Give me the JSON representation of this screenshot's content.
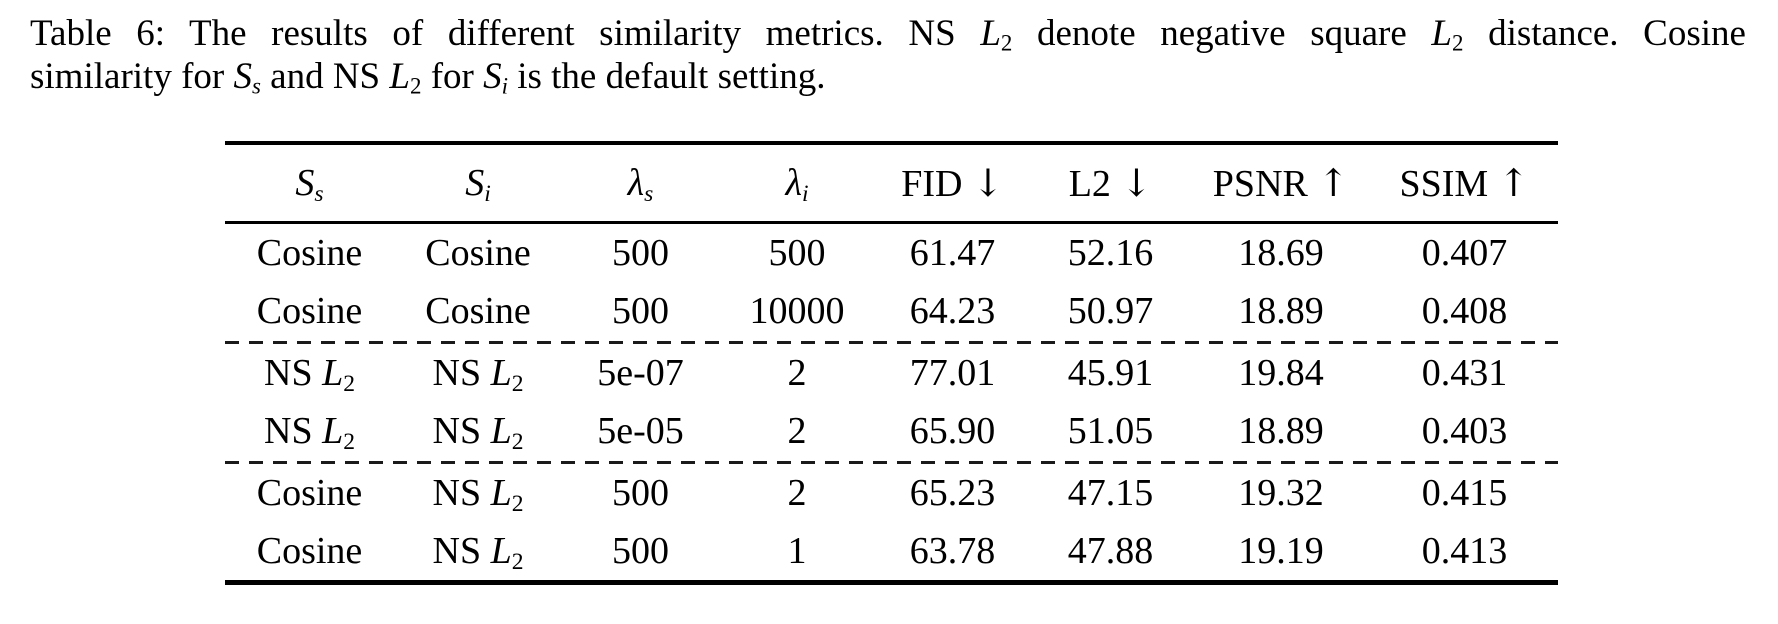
{
  "caption": {
    "line1": [
      {
        "t": "Table 6: The results of different similarity metrics. NS "
      },
      {
        "t": "L",
        "s": "i"
      },
      {
        "t": "2",
        "s": "sub"
      },
      {
        "t": " denote negative square "
      },
      {
        "t": "L",
        "s": "i"
      },
      {
        "t": "2",
        "s": "sub"
      },
      {
        "t": " distance. Cosine"
      }
    ],
    "line2": [
      {
        "t": "similarity for "
      },
      {
        "t": "S",
        "s": "cal"
      },
      {
        "t": "s",
        "s": "subi"
      },
      {
        "t": " and NS "
      },
      {
        "t": "L",
        "s": "i"
      },
      {
        "t": "2",
        "s": "sub"
      },
      {
        "t": " for "
      },
      {
        "t": "S",
        "s": "cal"
      },
      {
        "t": "i",
        "s": "subi"
      },
      {
        "t": " is the default setting."
      }
    ]
  },
  "table": {
    "columns": [
      {
        "id": "similarity-s",
        "segments": [
          {
            "t": "S",
            "s": "cal"
          },
          {
            "t": "s",
            "s": "subi"
          }
        ]
      },
      {
        "id": "similarity-i",
        "segments": [
          {
            "t": "S",
            "s": "cal"
          },
          {
            "t": "i",
            "s": "subi"
          }
        ]
      },
      {
        "id": "lambda-s",
        "segments": [
          {
            "t": "λ",
            "s": "i"
          },
          {
            "t": "s",
            "s": "subi"
          }
        ]
      },
      {
        "id": "lambda-i",
        "segments": [
          {
            "t": "λ",
            "s": "i"
          },
          {
            "t": "i",
            "s": "subi"
          }
        ]
      },
      {
        "id": "fid",
        "segments": [
          {
            "t": "FID "
          },
          {
            "t": "↓",
            "s": "arrow"
          }
        ]
      },
      {
        "id": "l2",
        "segments": [
          {
            "t": "L2 "
          },
          {
            "t": "↓",
            "s": "arrow"
          }
        ]
      },
      {
        "id": "psnr",
        "segments": [
          {
            "t": "PSNR "
          },
          {
            "t": "↑",
            "s": "arrow"
          }
        ]
      },
      {
        "id": "ssim",
        "segments": [
          {
            "t": "SSIM "
          },
          {
            "t": "↑",
            "s": "arrow"
          }
        ]
      }
    ],
    "rows": [
      {
        "cells": [
          [
            {
              "t": "Cosine"
            }
          ],
          [
            {
              "t": "Cosine"
            }
          ],
          [
            {
              "t": "500"
            }
          ],
          [
            {
              "t": "500"
            }
          ],
          [
            {
              "t": "61.47"
            }
          ],
          [
            {
              "t": "52.16"
            }
          ],
          [
            {
              "t": "18.69"
            }
          ],
          [
            {
              "t": "0.407"
            }
          ]
        ]
      },
      {
        "cells": [
          [
            {
              "t": "Cosine"
            }
          ],
          [
            {
              "t": "Cosine"
            }
          ],
          [
            {
              "t": "500"
            }
          ],
          [
            {
              "t": "10000"
            }
          ],
          [
            {
              "t": "64.23"
            }
          ],
          [
            {
              "t": "50.97"
            }
          ],
          [
            {
              "t": "18.89"
            }
          ],
          [
            {
              "t": "0.408"
            }
          ]
        ]
      },
      {
        "cells": [
          [
            {
              "t": "NS "
            },
            {
              "t": "L",
              "s": "i"
            },
            {
              "t": "2",
              "s": "sub"
            }
          ],
          [
            {
              "t": "NS "
            },
            {
              "t": "L",
              "s": "i"
            },
            {
              "t": "2",
              "s": "sub"
            }
          ],
          [
            {
              "t": "5e-07"
            }
          ],
          [
            {
              "t": "2"
            }
          ],
          [
            {
              "t": "77.01"
            }
          ],
          [
            {
              "t": "45.91"
            }
          ],
          [
            {
              "t": "19.84"
            }
          ],
          [
            {
              "t": "0.431"
            }
          ]
        ]
      },
      {
        "cells": [
          [
            {
              "t": "NS "
            },
            {
              "t": "L",
              "s": "i"
            },
            {
              "t": "2",
              "s": "sub"
            }
          ],
          [
            {
              "t": "NS "
            },
            {
              "t": "L",
              "s": "i"
            },
            {
              "t": "2",
              "s": "sub"
            }
          ],
          [
            {
              "t": "5e-05"
            }
          ],
          [
            {
              "t": "2"
            }
          ],
          [
            {
              "t": "65.90"
            }
          ],
          [
            {
              "t": "51.05"
            }
          ],
          [
            {
              "t": "18.89"
            }
          ],
          [
            {
              "t": "0.403"
            }
          ]
        ]
      },
      {
        "cells": [
          [
            {
              "t": "Cosine"
            }
          ],
          [
            {
              "t": "NS "
            },
            {
              "t": "L",
              "s": "i"
            },
            {
              "t": "2",
              "s": "sub"
            }
          ],
          [
            {
              "t": "500"
            }
          ],
          [
            {
              "t": "2"
            }
          ],
          [
            {
              "t": "65.23"
            }
          ],
          [
            {
              "t": "47.15"
            }
          ],
          [
            {
              "t": "19.32"
            }
          ],
          [
            {
              "t": "0.415"
            }
          ]
        ]
      },
      {
        "cells": [
          [
            {
              "t": "Cosine"
            }
          ],
          [
            {
              "t": "NS "
            },
            {
              "t": "L",
              "s": "i"
            },
            {
              "t": "2",
              "s": "sub"
            }
          ],
          [
            {
              "t": "500"
            }
          ],
          [
            {
              "t": "1"
            }
          ],
          [
            {
              "t": "63.78"
            }
          ],
          [
            {
              "t": "47.88"
            }
          ],
          [
            {
              "t": "19.19"
            }
          ],
          [
            {
              "t": "0.413"
            }
          ]
        ]
      }
    ],
    "dashed_after": [
      1,
      3
    ]
  }
}
